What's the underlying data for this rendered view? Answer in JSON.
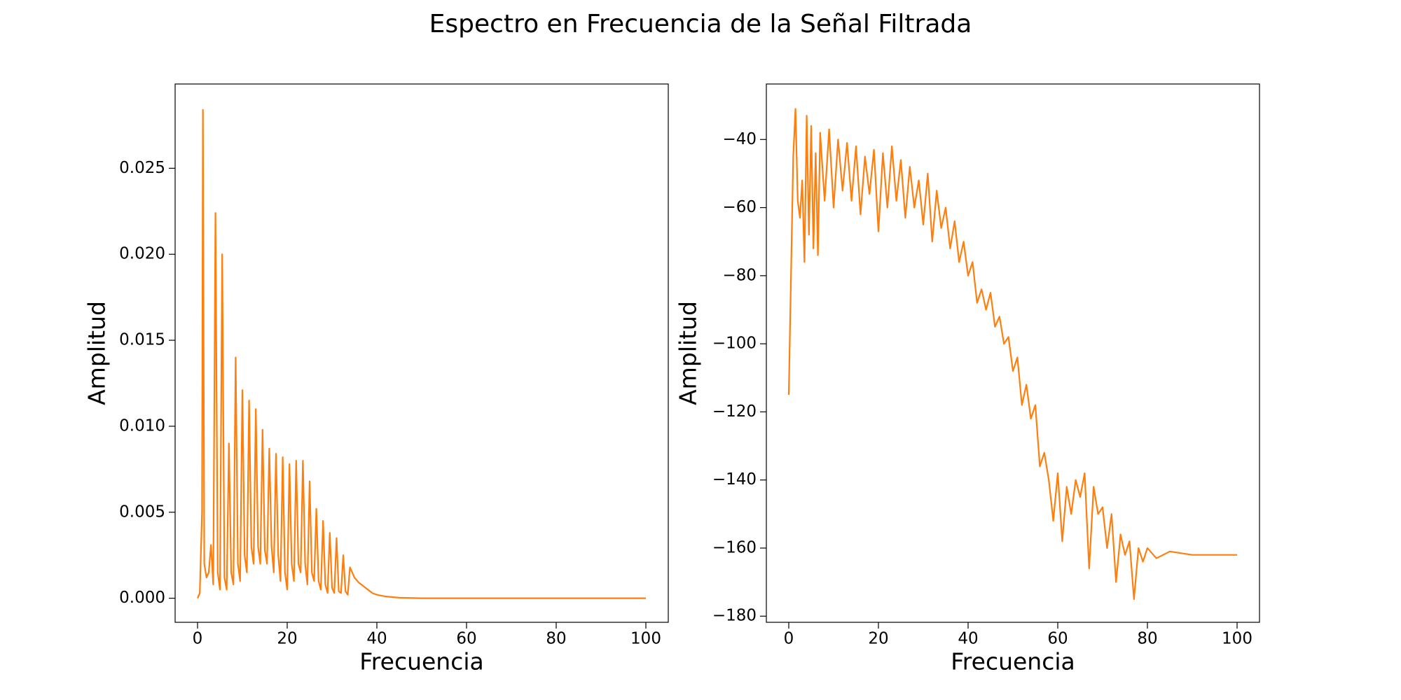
{
  "title": "Espectro en Frecuencia de la Señal Filtrada",
  "chart_data": [
    {
      "type": "line",
      "xlabel": "Frecuencia",
      "ylabel": "Amplitud",
      "color": "#ff7f0e",
      "xlim": [
        -5,
        105
      ],
      "xticks": [
        0,
        20,
        40,
        60,
        80,
        100
      ],
      "ylim": [
        -0.0014,
        0.0299
      ],
      "yticks": [
        {
          "value": 0,
          "label": "0.000"
        },
        {
          "value": 0.005,
          "label": "0.005"
        },
        {
          "value": 0.01,
          "label": "0.010"
        },
        {
          "value": 0.015,
          "label": "0.015"
        },
        {
          "value": 0.02,
          "label": "0.020"
        },
        {
          "value": 0.025,
          "label": "0.025"
        }
      ],
      "x": [
        0,
        0.5,
        1.0,
        1.2,
        1.5,
        2,
        2.5,
        3,
        3.5,
        4,
        4.5,
        5,
        5.5,
        6,
        6.5,
        7,
        7.5,
        8,
        8.5,
        9,
        9.5,
        10,
        10.5,
        11,
        11.5,
        12,
        12.5,
        13,
        13.5,
        14,
        14.5,
        15,
        15.5,
        16,
        16.5,
        17,
        17.5,
        18,
        18.5,
        19,
        19.5,
        20,
        20.5,
        21,
        21.5,
        22,
        22.5,
        23,
        23.5,
        24,
        24.5,
        25,
        25.5,
        26,
        26.5,
        27,
        27.5,
        28,
        28.5,
        29,
        29.5,
        30,
        30.5,
        31,
        31.5,
        32,
        32.5,
        33,
        33.5,
        34,
        35,
        36,
        37,
        38,
        39,
        40,
        42,
        45,
        50,
        60,
        70,
        80,
        90,
        100
      ],
      "values": [
        0,
        0.0003,
        0.005,
        0.0284,
        0.002,
        0.0012,
        0.0015,
        0.0031,
        0.0008,
        0.0224,
        0.0015,
        0.0005,
        0.02,
        0.0012,
        0.0005,
        0.009,
        0.0015,
        0.0008,
        0.014,
        0.002,
        0.001,
        0.0121,
        0.0025,
        0.0015,
        0.0115,
        0.003,
        0.002,
        0.011,
        0.003,
        0.002,
        0.0098,
        0.0028,
        0.002,
        0.0087,
        0.003,
        0.0015,
        0.0084,
        0.0025,
        0.001,
        0.0082,
        0.0015,
        0.0005,
        0.0078,
        0.002,
        0.001,
        0.008,
        0.002,
        0.0015,
        0.008,
        0.002,
        0.0008,
        0.0068,
        0.0015,
        0.001,
        0.0052,
        0.001,
        0.0005,
        0.0045,
        0.0008,
        0.0003,
        0.0038,
        0.0006,
        0.0003,
        0.0035,
        0.0004,
        0.0003,
        0.0025,
        0.0004,
        0.0002,
        0.0018,
        0.0012,
        0.0009,
        0.0007,
        0.0005,
        0.0003,
        0.0002,
        0.0001,
        3e-05,
        0,
        0,
        0,
        0,
        0,
        0
      ]
    },
    {
      "type": "line",
      "xlabel": "Frecuencia",
      "ylabel": "Amplitud",
      "color": "#ff7f0e",
      "xlim": [
        -5,
        105
      ],
      "xticks": [
        0,
        20,
        40,
        60,
        80,
        100
      ],
      "ylim": [
        -181.8,
        -23.7
      ],
      "yticks": [
        {
          "value": -180,
          "label": "−180"
        },
        {
          "value": -160,
          "label": "−160"
        },
        {
          "value": -140,
          "label": "−140"
        },
        {
          "value": -120,
          "label": "−120"
        },
        {
          "value": -100,
          "label": "−100"
        },
        {
          "value": -80,
          "label": "−80"
        },
        {
          "value": -60,
          "label": "−60"
        },
        {
          "value": -40,
          "label": "−40"
        }
      ],
      "x": [
        0,
        0.5,
        1,
        1.5,
        2,
        2.5,
        3,
        3.5,
        4,
        4.5,
        5,
        5.5,
        6,
        6.5,
        7,
        8,
        9,
        10,
        11,
        12,
        13,
        14,
        15,
        16,
        17,
        18,
        19,
        20,
        21,
        22,
        23,
        24,
        25,
        26,
        27,
        28,
        29,
        30,
        31,
        32,
        33,
        34,
        35,
        36,
        37,
        38,
        39,
        40,
        41,
        42,
        43,
        44,
        45,
        46,
        47,
        48,
        49,
        50,
        51,
        52,
        53,
        54,
        55,
        56,
        57,
        58,
        59,
        60,
        61,
        62,
        63,
        64,
        65,
        66,
        67,
        68,
        69,
        70,
        71,
        72,
        73,
        74,
        75,
        76,
        77,
        78,
        79,
        80,
        82,
        85,
        90,
        95,
        100
      ],
      "values": [
        -115,
        -80,
        -45,
        -31,
        -58,
        -63,
        -52,
        -76,
        -33,
        -68,
        -36,
        -72,
        -44,
        -74,
        -38,
        -58,
        -37,
        -60,
        -40,
        -55,
        -41,
        -58,
        -42,
        -62,
        -45,
        -56,
        -43,
        -67,
        -44,
        -60,
        -42,
        -58,
        -46,
        -63,
        -48,
        -60,
        -52,
        -65,
        -50,
        -70,
        -55,
        -66,
        -60,
        -72,
        -64,
        -76,
        -70,
        -80,
        -76,
        -88,
        -84,
        -90,
        -85,
        -95,
        -92,
        -100,
        -98,
        -108,
        -104,
        -118,
        -112,
        -122,
        -118,
        -136,
        -132,
        -140,
        -152,
        -138,
        -158,
        -142,
        -150,
        -140,
        -145,
        -138,
        -166,
        -142,
        -150,
        -148,
        -160,
        -150,
        -170,
        -156,
        -162,
        -158,
        -175,
        -160,
        -164,
        -160,
        -163,
        -161,
        -162,
        -162,
        -162
      ]
    }
  ]
}
